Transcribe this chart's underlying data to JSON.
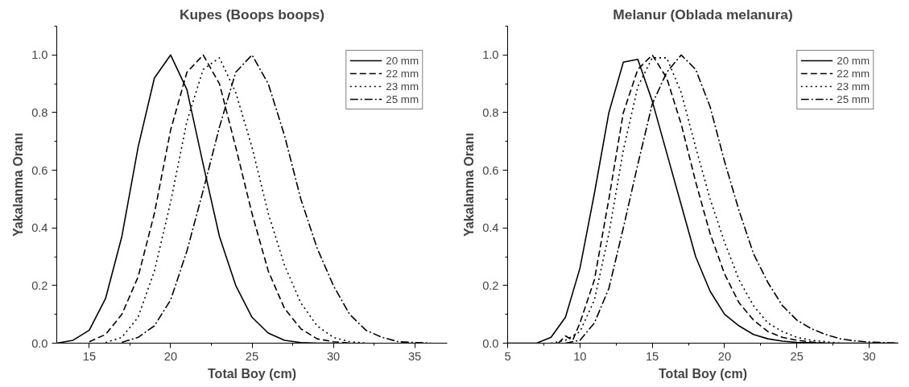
{
  "chart_data": [
    {
      "type": "line",
      "title": "Kupes (Boops boops)",
      "xlabel": "Total Boy (cm)",
      "ylabel": "Yakalanma Oranı",
      "xlim": [
        13,
        37
      ],
      "ylim": [
        0,
        1.1
      ],
      "xticks": [
        15,
        20,
        25,
        30,
        35
      ],
      "yticks": [
        {
          "value": 0,
          "label": "0.0"
        },
        {
          "value": 0.2,
          "label": "0.2"
        },
        {
          "value": 0.4,
          "label": "0.4"
        },
        {
          "value": 0.6,
          "label": "0.6"
        },
        {
          "value": 0.8,
          "label": "0.8"
        },
        {
          "value": 1,
          "label": "1.0"
        }
      ],
      "grid": false,
      "legend": "top right",
      "marker": "none",
      "series": [
        {
          "name": "20 mm",
          "color": "#000000",
          "line_style": "solid",
          "x": [
            13,
            14,
            15,
            16,
            17,
            18,
            19,
            20,
            21,
            22,
            23,
            24,
            25,
            26,
            27,
            28,
            29,
            30
          ],
          "values": [
            0,
            0.01,
            0.045,
            0.155,
            0.37,
            0.68,
            0.92,
            1.0,
            0.88,
            0.62,
            0.37,
            0.2,
            0.09,
            0.035,
            0.01,
            0.002,
            0,
            0
          ]
        },
        {
          "name": "22 mm",
          "color": "#000000",
          "line_style": "dashed",
          "x": [
            15,
            16,
            17,
            18,
            19,
            20,
            21,
            22,
            23,
            24,
            25,
            26,
            27,
            28,
            29,
            30,
            31
          ],
          "values": [
            0.005,
            0.03,
            0.1,
            0.23,
            0.45,
            0.74,
            0.94,
            1.0,
            0.9,
            0.68,
            0.45,
            0.25,
            0.12,
            0.05,
            0.015,
            0.005,
            0
          ]
        },
        {
          "name": "23 mm",
          "color": "#000000",
          "line_style": "dotted",
          "x": [
            16,
            17,
            18,
            19,
            20,
            21,
            22,
            23,
            24,
            25,
            26,
            27,
            28,
            29,
            30,
            31,
            32
          ],
          "values": [
            0.002,
            0.02,
            0.09,
            0.25,
            0.49,
            0.77,
            0.95,
            0.99,
            0.87,
            0.68,
            0.45,
            0.27,
            0.14,
            0.06,
            0.02,
            0.005,
            0
          ]
        },
        {
          "name": "25 mm",
          "color": "#000000",
          "line_style": "dashdot",
          "x": [
            17,
            18,
            19,
            20,
            21,
            22,
            23,
            24,
            25,
            26,
            27,
            28,
            29,
            30,
            31,
            32,
            33,
            34,
            35,
            36
          ],
          "values": [
            0.003,
            0.02,
            0.06,
            0.15,
            0.32,
            0.53,
            0.75,
            0.94,
            1.0,
            0.9,
            0.72,
            0.5,
            0.33,
            0.2,
            0.1,
            0.045,
            0.02,
            0.005,
            0.002,
            0
          ]
        }
      ]
    },
    {
      "type": "line",
      "title": "Melanur (Oblada melanura)",
      "xlabel": "Total Boy (cm)",
      "ylabel": "Yakalanma Oranı",
      "xlim": [
        5,
        32
      ],
      "ylim": [
        0,
        1.1
      ],
      "xticks": [
        5,
        10,
        15,
        20,
        25,
        30
      ],
      "yticks": [
        {
          "value": 0,
          "label": "0.0"
        },
        {
          "value": 0.2,
          "label": "0.2"
        },
        {
          "value": 0.4,
          "label": "0.4"
        },
        {
          "value": 0.6,
          "label": "0.6"
        },
        {
          "value": 0.8,
          "label": "0.8"
        },
        {
          "value": 1,
          "label": "1.0"
        }
      ],
      "grid": false,
      "legend": "top right",
      "marker": "none",
      "series": [
        {
          "name": "20 mm",
          "color": "#000000",
          "line_style": "solid",
          "x": [
            5,
            7,
            8,
            9,
            10,
            11,
            12,
            13,
            14,
            15,
            16,
            17,
            18,
            19,
            20,
            21,
            22,
            23,
            24,
            25,
            26,
            27,
            32
          ],
          "values": [
            0,
            0,
            0.02,
            0.09,
            0.26,
            0.52,
            0.8,
            0.975,
            0.985,
            0.84,
            0.66,
            0.48,
            0.3,
            0.18,
            0.1,
            0.06,
            0.03,
            0.015,
            0.007,
            0.003,
            0.001,
            0,
            0
          ]
        },
        {
          "name": "22 mm",
          "color": "#000000",
          "line_style": "dashed",
          "x": [
            8.5,
            9,
            9.5,
            10,
            11,
            12,
            13,
            14,
            15,
            16,
            17,
            18,
            19,
            20,
            21,
            22,
            23,
            24,
            25,
            26,
            27
          ],
          "values": [
            0,
            0.025,
            0.01,
            0.07,
            0.22,
            0.5,
            0.8,
            0.95,
            1.0,
            0.92,
            0.76,
            0.56,
            0.38,
            0.24,
            0.14,
            0.08,
            0.04,
            0.02,
            0.01,
            0.004,
            0
          ]
        },
        {
          "name": "23 mm",
          "color": "#000000",
          "line_style": "dotted",
          "x": [
            8,
            9,
            10,
            11,
            12,
            13,
            14,
            15,
            16,
            17,
            18,
            19,
            20,
            21,
            22,
            23,
            24,
            25,
            26,
            27,
            28
          ],
          "values": [
            0,
            0.01,
            0.04,
            0.15,
            0.38,
            0.67,
            0.89,
            0.99,
            0.99,
            0.87,
            0.68,
            0.5,
            0.35,
            0.22,
            0.13,
            0.07,
            0.04,
            0.02,
            0.01,
            0.005,
            0
          ]
        },
        {
          "name": "25 mm",
          "color": "#000000",
          "line_style": "dashdot",
          "x": [
            9,
            10,
            11,
            12,
            13,
            14,
            15,
            16,
            17,
            18,
            19,
            20,
            21,
            22,
            23,
            24,
            25,
            26,
            27,
            28,
            29,
            30,
            31,
            32
          ],
          "values": [
            0,
            0.01,
            0.07,
            0.19,
            0.4,
            0.62,
            0.83,
            0.94,
            1.0,
            0.95,
            0.82,
            0.63,
            0.46,
            0.31,
            0.21,
            0.13,
            0.08,
            0.05,
            0.03,
            0.015,
            0.008,
            0.004,
            0.002,
            0
          ]
        }
      ]
    }
  ]
}
